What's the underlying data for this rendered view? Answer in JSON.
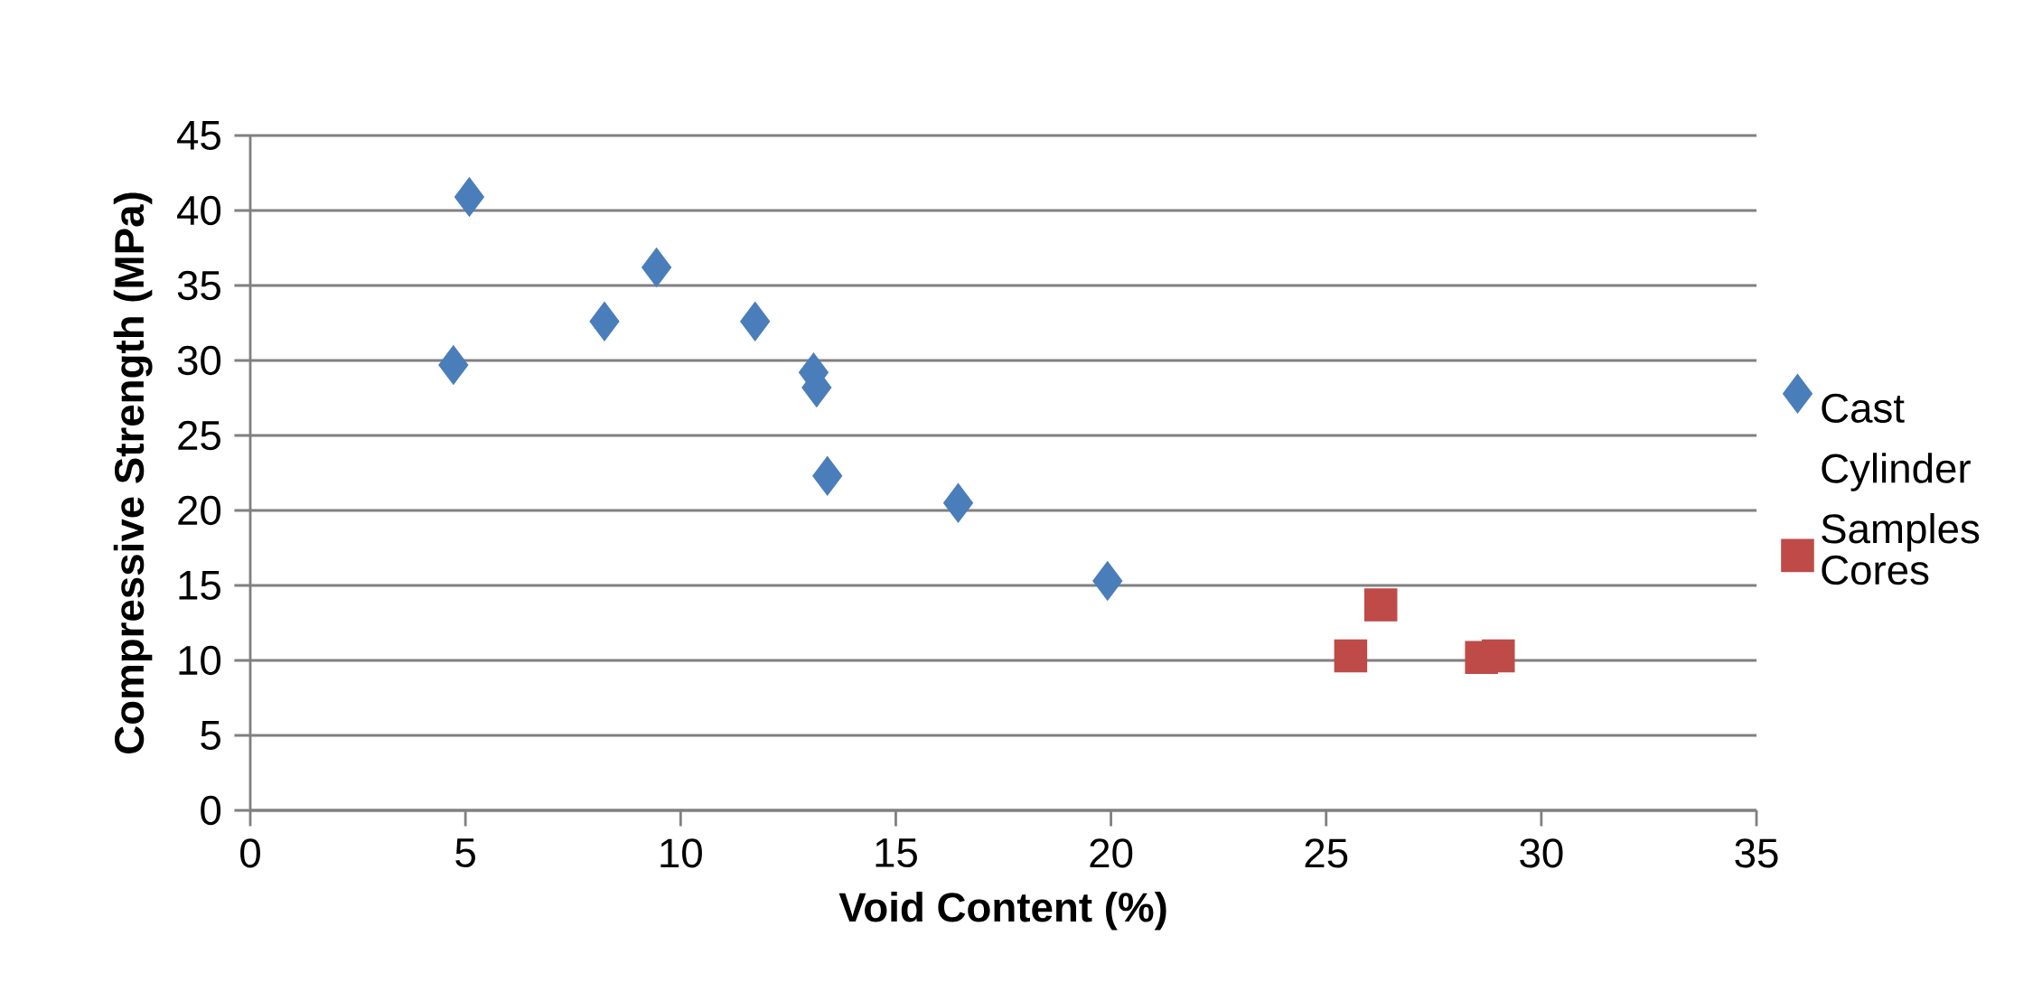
{
  "chart_data": {
    "type": "scatter",
    "xlabel": "Void Content (%)",
    "ylabel": "Compressive Strength (MPa)",
    "xlim": [
      0,
      35
    ],
    "xticks": [
      0,
      5,
      10,
      15,
      20,
      25,
      30,
      35
    ],
    "ylim": [
      0,
      45
    ],
    "yticks": [
      0,
      5,
      10,
      15,
      20,
      25,
      30,
      35,
      40,
      45
    ],
    "grid": "y",
    "legend": "right",
    "series": [
      {
        "name": "Cast Cylinder Samples",
        "color": "#4a7ebb",
        "marker": "diamond",
        "x": [
          5.09,
          4.72,
          8.23,
          9.44,
          11.73,
          13.09,
          13.16,
          13.41,
          16.45,
          19.92
        ],
        "values": [
          40.9,
          29.7,
          32.6,
          36.2,
          32.6,
          29.2,
          28.2,
          22.3,
          20.5,
          15.3
        ]
      },
      {
        "name": "Cores",
        "color": "#be4b48",
        "marker": "square",
        "x": [
          25.57,
          26.27,
          28.61,
          29.0
        ],
        "values": [
          10.3,
          13.7,
          10.2,
          10.3
        ]
      }
    ]
  }
}
